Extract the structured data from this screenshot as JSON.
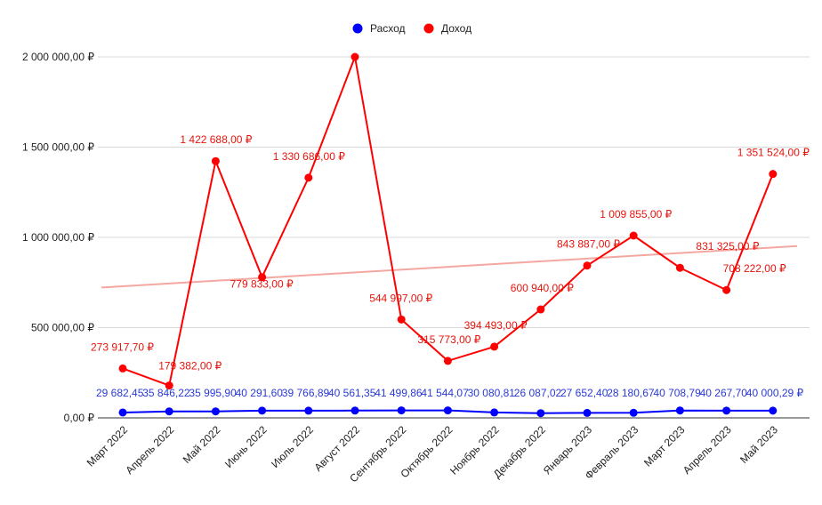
{
  "chart_data": {
    "type": "line",
    "title": "",
    "xlabel": "",
    "ylabel": "",
    "categories": [
      "Март 2022",
      "Апрель 2022",
      "Май 2022",
      "Июнь 2022",
      "Июль 2022",
      "Август 2022",
      "Сентябрь 2022",
      "Октябрь 2022",
      "Ноябрь 2022",
      "Декабрь 2022",
      "Январь 2023",
      "Февраль 2023",
      "Март 2023",
      "Апрель 2023",
      "Май 2023"
    ],
    "ylim": [
      0,
      2000000
    ],
    "y_ticks": [
      0,
      500000,
      1000000,
      1500000,
      2000000
    ],
    "y_tick_labels": [
      "0,00 ₽",
      "500 000,00 ₽",
      "1 000 000,00 ₽",
      "1 500 000,00 ₽",
      "2 000 000,00 ₽"
    ],
    "grid": true,
    "legend_position": "top",
    "series": [
      {
        "name": "Расход",
        "color": "#0000ff",
        "values": [
          29682.45,
          35846.22,
          35995.9,
          40291.6,
          39766.89,
          40561.35,
          41499.86,
          41544.07,
          30080.81,
          26087.02,
          27652.4,
          28180.67,
          40708.79,
          40267.7,
          40000.29
        ],
        "labels": [
          "29 682,45",
          "35 846,22",
          "35 995,90",
          "40 291,60",
          "39 766,89",
          "40 561,35",
          "41 499,86",
          "41 544,07",
          "30 080,81",
          "26 087,02",
          "27 652,40",
          "28 180,67",
          "40 708,79",
          "40 267,70",
          "40 000,29 ₽"
        ]
      },
      {
        "name": "Доход",
        "color": "#ff0000",
        "values": [
          273917.7,
          179382.0,
          1422688.0,
          779833.0,
          1330686.0,
          2000000.0,
          544997.0,
          315773.0,
          394493.0,
          600940.0,
          843887.0,
          1009855.0,
          831325.0,
          708222.0,
          1351524.0
        ],
        "labels": [
          "273 917,70 ₽",
          "179 382,00 ₽",
          "1 422 688,00 ₽",
          "779 833,00 ₽",
          "1 330 686,00 ₽",
          "",
          "544 997,00 ₽",
          "315 773,00 ₽",
          "394 493,00 ₽",
          "600 940,00 ₽",
          "843 887,00 ₽",
          "1 009 855,00 ₽",
          "831 325,00 ₽",
          "708 222,00 ₽",
          "1 351 524,00 ₽"
        ]
      }
    ],
    "trendline": {
      "series": "Доход",
      "color": "#f4a7a0",
      "start_value": 722000,
      "end_value": 952000
    }
  }
}
